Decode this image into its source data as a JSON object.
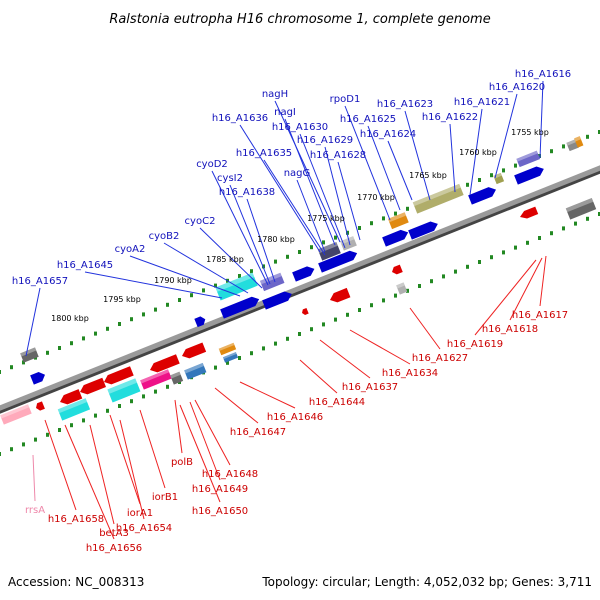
{
  "title": "Ralstonia eutropha H16 chromosome 1, complete genome",
  "footer": {
    "accession": "Accession: NC_008313",
    "summary": "Topology: circular; Length: 4,052,032 bp; Genes: 3,711"
  },
  "colors": {
    "forward_gene": "#0000cc",
    "reverse_gene": "#dd0000",
    "forward_label": "#1111bb",
    "reverse_label": "#cc0000",
    "rna_label": "#ee88aa",
    "tick": "#228822",
    "backbone": "#888888"
  },
  "scale_labels": [
    "1755 kbp",
    "1760 kbp",
    "1765 kbp",
    "1770 kbp",
    "1775 kbp",
    "1780 kbp",
    "1785 kbp",
    "1790 kbp",
    "1795 kbp",
    "1800 kbp"
  ],
  "forward_labels": [
    "h16_A1616",
    "h16_A1620",
    "h16_A1621",
    "h16_A1622",
    "h16_A1623",
    "rpoD1",
    "h16_A1625",
    "h16_A1624",
    "nagH",
    "nagI",
    "h16_A1636",
    "h16_A1630",
    "h16_A1629",
    "h16_A1635",
    "h16_A1628",
    "nagG",
    "cyoD2",
    "cysI2",
    "h16_A1638",
    "cyoC2",
    "cyoB2",
    "cyoA2",
    "h16_A1645",
    "h16_A1657"
  ],
  "reverse_labels": [
    "h16_A1617",
    "h16_A1618",
    "h16_A1619",
    "h16_A1627",
    "h16_A1634",
    "h16_A1637",
    "h16_A1644",
    "h16_A1646",
    "h16_A1647",
    "polB",
    "h16_A1648",
    "h16_A1649",
    "h16_A1650",
    "iorB1",
    "iorA1",
    "betA3",
    "h16_A1654",
    "h16_A1658",
    "h16_A1656",
    "rrsA"
  ]
}
